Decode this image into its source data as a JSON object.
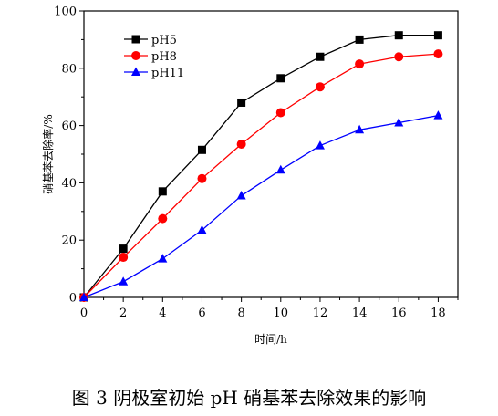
{
  "chart_data": {
    "type": "line",
    "x": [
      0,
      2,
      4,
      6,
      8,
      10,
      12,
      14,
      16,
      18
    ],
    "xlim": [
      0,
      19
    ],
    "ylim": [
      0,
      100
    ],
    "xticks": [
      "0",
      "2",
      "4",
      "6",
      "8",
      "10",
      "12",
      "14",
      "16",
      "18"
    ],
    "yticks": [
      "0",
      "20",
      "40",
      "60",
      "80",
      "100"
    ],
    "xlabel": "时间/h",
    "ylabel": "硝基苯去除率/%",
    "legend_position": "top-left",
    "grid": false,
    "series": [
      {
        "name": "pH5",
        "color": "#000000",
        "marker": "square",
        "values": [
          0,
          17,
          37,
          51.5,
          68,
          76.5,
          84,
          90,
          91.5,
          91.5
        ]
      },
      {
        "name": "pH8",
        "color": "#ff0000",
        "marker": "circle",
        "values": [
          0,
          14,
          27.5,
          41.5,
          53.5,
          64.5,
          73.5,
          81.5,
          84,
          85
        ]
      },
      {
        "name": "pH11",
        "color": "#0000ff",
        "marker": "triangle",
        "values": [
          0,
          5.5,
          13.5,
          23.5,
          35.5,
          44.5,
          53,
          58.5,
          61,
          63.5
        ]
      }
    ]
  },
  "caption": "图 3   阴极室初始 pH 硝基苯去除效果的影响"
}
